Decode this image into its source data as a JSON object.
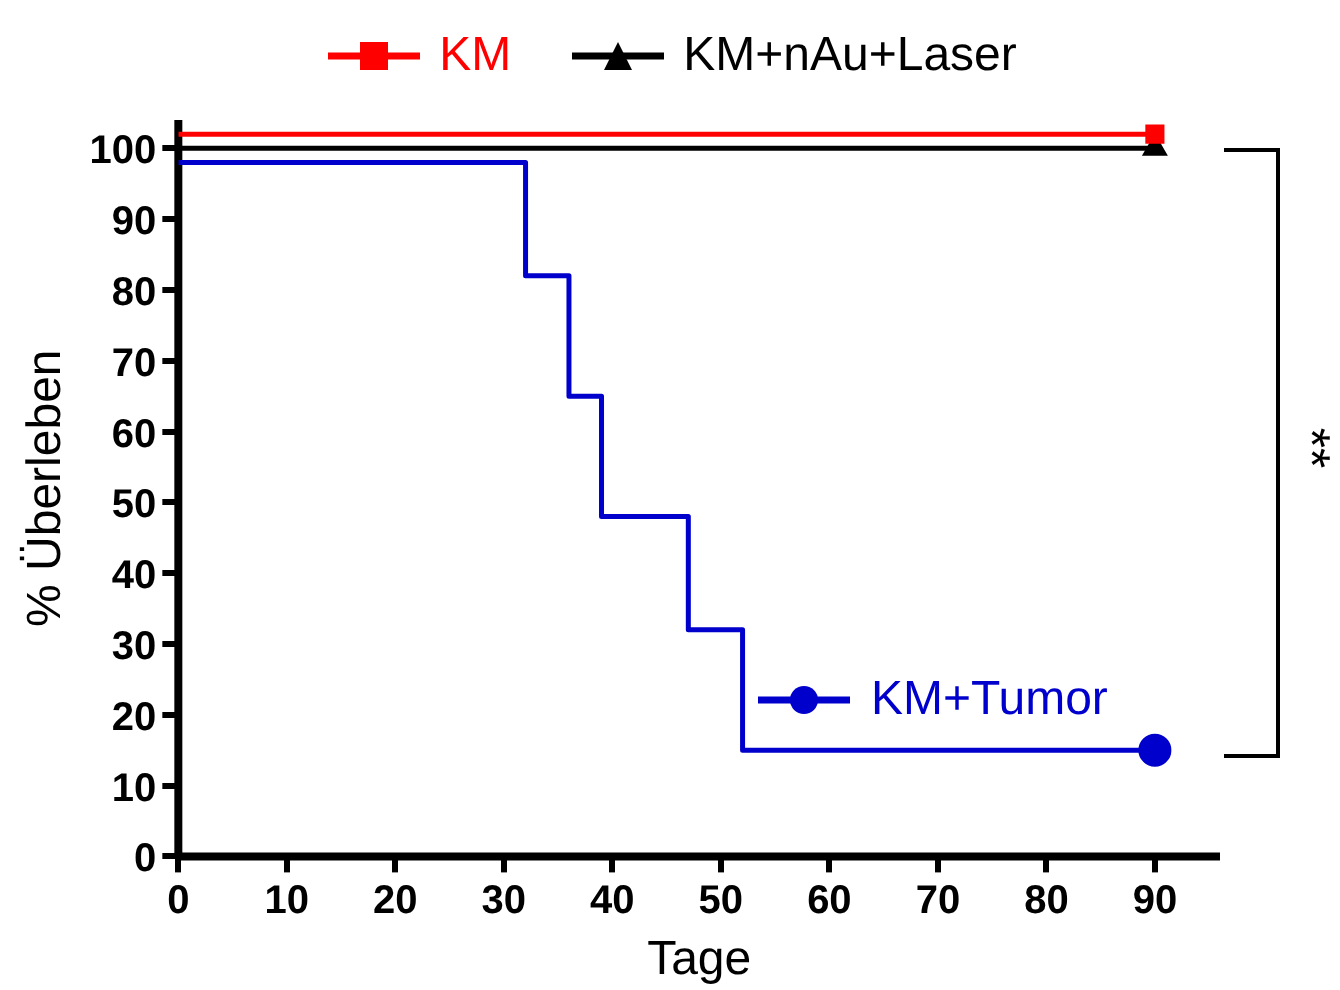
{
  "chart_data": {
    "type": "step",
    "xlabel": "Tage",
    "ylabel": "% Überleben",
    "xlim": [
      0,
      96
    ],
    "xticks": [
      0,
      10,
      20,
      30,
      40,
      50,
      60,
      70,
      80,
      90
    ],
    "ylim": [
      0,
      104
    ],
    "yticks": [
      0,
      10,
      20,
      30,
      40,
      50,
      60,
      70,
      80,
      90,
      100
    ],
    "grid": false,
    "legend": "top",
    "series": [
      {
        "name": "KM",
        "color": "#ff0000",
        "x": [
          0,
          90
        ],
        "values": [
          102,
          102
        ]
      },
      {
        "name": "KM+nAu+Laser",
        "color": "#000000",
        "x": [
          0,
          90
        ],
        "values": [
          100,
          100
        ]
      },
      {
        "name": "KM+Tumor",
        "color": "#0000cc",
        "x": [
          0,
          32,
          36,
          39,
          47,
          52,
          90
        ],
        "values": [
          98,
          82,
          65,
          48,
          32,
          15,
          15
        ]
      },
      {
        "type": "scatter",
        "color": "#ff0000",
        "marker": "square",
        "x": [
          90
        ],
        "values": [
          102
        ]
      },
      {
        "type": "scatter",
        "color": "#000000",
        "marker": "triangle",
        "x": [
          90
        ],
        "values": [
          100
        ]
      },
      {
        "type": "scatter",
        "color": "#0000cc",
        "marker": "circle",
        "x": [
          90
        ],
        "values": [
          15
        ]
      }
    ],
    "annotations": [
      "**"
    ]
  }
}
